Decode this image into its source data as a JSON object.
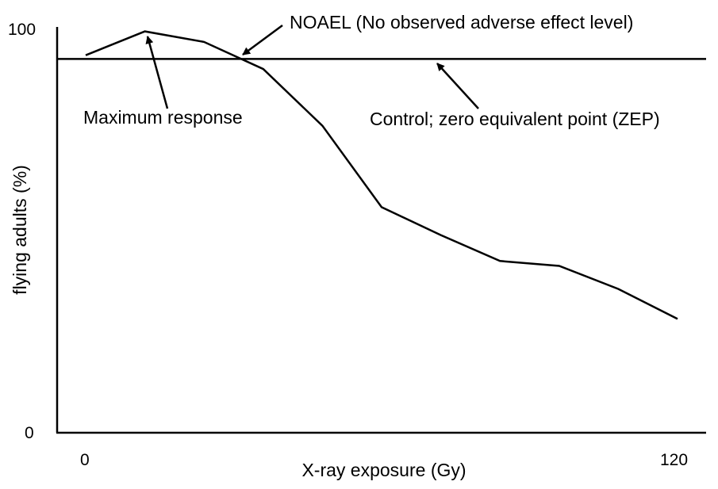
{
  "chart_data": {
    "type": "line",
    "title": "",
    "xlabel": "X-ray exposure (Gy)",
    "ylabel": "flying adults (%)",
    "xlim": [
      0,
      120
    ],
    "ylim": [
      0,
      100
    ],
    "x_tick_labels": [
      "0",
      "120"
    ],
    "y_tick_labels": [
      "0",
      "100"
    ],
    "grid": false,
    "legend": "none",
    "series": [
      {
        "x": [
          0,
          12,
          24,
          36,
          48,
          60,
          72,
          84,
          96,
          108,
          120
        ],
        "y": [
          93.2,
          99.1,
          96.5,
          89.8,
          75.8,
          55.7,
          48.8,
          42.4,
          41.2,
          35.5,
          28.1
        ]
      }
    ],
    "reference_lines": [
      {
        "axis": "y",
        "value": 92.3,
        "label": "Control; zero equivalent point  (ZEP)"
      }
    ],
    "annotations": [
      {
        "text": "NOAEL (No observed adverse effect level)",
        "x": 30,
        "y": 92.5
      },
      {
        "text": "Maximum response",
        "x": 12,
        "y": 99.1
      },
      {
        "text": "Control; zero equivalent point  (ZEP)",
        "x": 71.5,
        "y": 92.3
      }
    ],
    "colors": {
      "line": "#000000",
      "axis": "#000000"
    }
  }
}
